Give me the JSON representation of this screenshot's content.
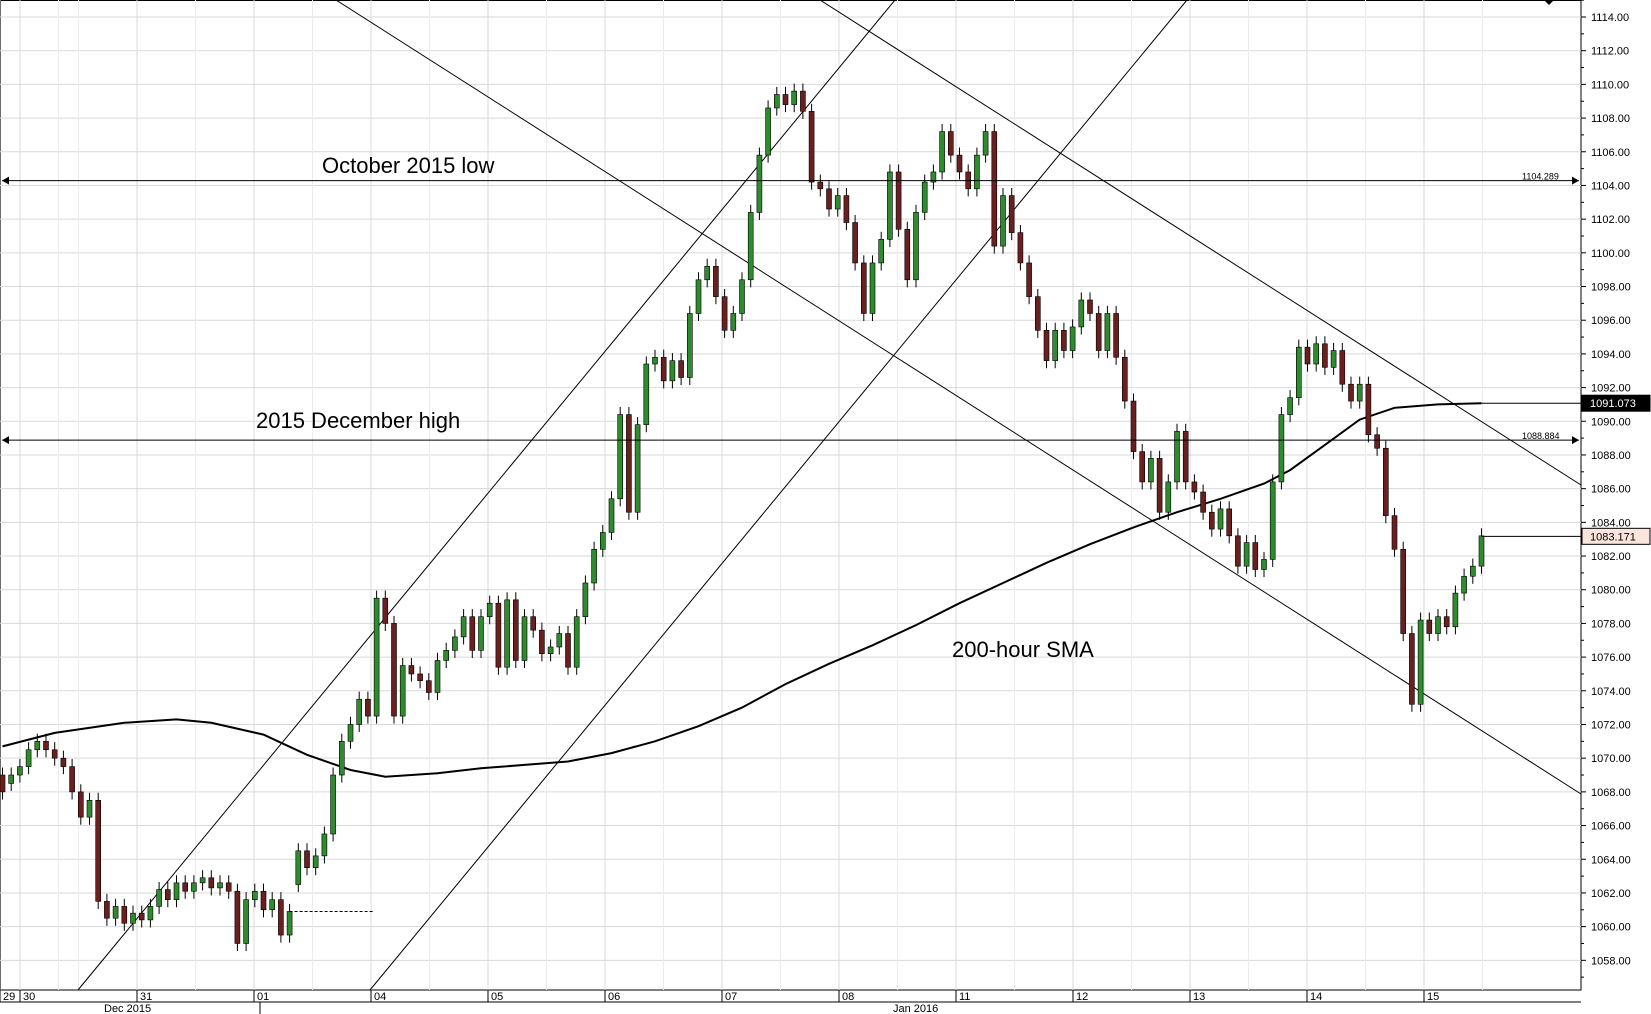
{
  "chart_data": {
    "type": "candlestick",
    "title": "",
    "xlabel": "",
    "ylabel": "",
    "ylim": [
      1056,
      1115
    ],
    "y_ticks": [
      "1114.00",
      "1112.00",
      "1110.00",
      "1108.00",
      "1106.00",
      "1104.00",
      "1102.00",
      "1100.00",
      "1098.00",
      "1096.00",
      "1094.00",
      "1092.00",
      "1090.00",
      "1088.00",
      "1086.00",
      "1084.00",
      "1082.00",
      "1080.00",
      "1078.00",
      "1076.00",
      "1074.00",
      "1072.00",
      "1070.00",
      "1068.00",
      "1066.00",
      "1064.00",
      "1062.00",
      "1060.00",
      "1058.00"
    ],
    "x_ticks": [
      "29",
      "30",
      "31",
      "01",
      "04",
      "05",
      "06",
      "07",
      "08",
      "11",
      "12",
      "13",
      "14",
      "15"
    ],
    "month_labels": [
      "Dec 2015",
      "Jan 2016"
    ],
    "grid": true,
    "annotations": [
      {
        "text": "October 2015 low",
        "level": 1104.289,
        "level_label": "1104.289"
      },
      {
        "text": "2015 December high",
        "level": 1088.884,
        "level_label": "1088.884"
      },
      {
        "text": "200-hour SMA"
      }
    ],
    "price_tags": [
      {
        "text": "1091.073",
        "value": 1091.073,
        "style": "dark"
      },
      {
        "text": "1083.171",
        "value": 1083.171,
        "style": "light"
      }
    ],
    "series": [
      {
        "kind": "candles",
        "points": [
          [
            0,
            1069,
            1068
          ],
          [
            1,
            1068.5,
            1069
          ],
          [
            2,
            1069,
            1069.5
          ],
          [
            3,
            1069.5,
            1070.5
          ],
          [
            4,
            1070.5,
            1071
          ],
          [
            5,
            1071,
            1070.5
          ],
          [
            6,
            1070.5,
            1070
          ],
          [
            7,
            1070,
            1069.5
          ],
          [
            8,
            1069.5,
            1068
          ],
          [
            9,
            1068,
            1066.5
          ],
          [
            10,
            1066.5,
            1067.5
          ],
          [
            11,
            1067.5,
            1061.5
          ],
          [
            12,
            1061.5,
            1060.5
          ],
          [
            13,
            1060.5,
            1061.2
          ],
          [
            14,
            1061.2,
            1060.2
          ],
          [
            15,
            1060.2,
            1060.8
          ],
          [
            16,
            1060.8,
            1060.4
          ],
          [
            17,
            1060.4,
            1061.2
          ],
          [
            18,
            1061.2,
            1062.2
          ],
          [
            19,
            1062.2,
            1061.6
          ],
          [
            20,
            1061.6,
            1062.6
          ],
          [
            21,
            1062.6,
            1062.1
          ],
          [
            22,
            1062.1,
            1062.6
          ],
          [
            23,
            1062.6,
            1062.9
          ],
          [
            24,
            1062.9,
            1062.3
          ],
          [
            25,
            1062.3,
            1062.6
          ],
          [
            26,
            1062.6,
            1062.1
          ],
          [
            27,
            1062.1,
            1059
          ],
          [
            28,
            1059,
            1061.6
          ],
          [
            29,
            1061.6,
            1062.1
          ],
          [
            30,
            1062.1,
            1061
          ],
          [
            31,
            1061,
            1061.6
          ],
          [
            32,
            1061.6,
            1059.5
          ],
          [
            33,
            1059.5,
            1060.9
          ],
          [
            34,
            1062.5,
            1064.5
          ],
          [
            35,
            1064.5,
            1063.5
          ],
          [
            36,
            1063.5,
            1064.2
          ],
          [
            37,
            1064.2,
            1065.5
          ],
          [
            38,
            1065.5,
            1069
          ],
          [
            39,
            1069,
            1071
          ],
          [
            40,
            1071,
            1072
          ],
          [
            41,
            1072,
            1073.5
          ],
          [
            42,
            1073.5,
            1072.5
          ],
          [
            43,
            1072.5,
            1079.5
          ],
          [
            44,
            1079.5,
            1078
          ],
          [
            45,
            1078,
            1072.5
          ],
          [
            46,
            1072.5,
            1075.5
          ],
          [
            47,
            1075.5,
            1075
          ],
          [
            48,
            1075,
            1074.6
          ],
          [
            49,
            1074.6,
            1073.9
          ],
          [
            50,
            1073.9,
            1075.8
          ],
          [
            51,
            1075.8,
            1076.4
          ],
          [
            52,
            1076.4,
            1077.2
          ],
          [
            53,
            1077.2,
            1078.4
          ],
          [
            54,
            1078.4,
            1076.4
          ],
          [
            55,
            1076.4,
            1078.4
          ],
          [
            56,
            1078.4,
            1079.2
          ],
          [
            57,
            1079.2,
            1075.4
          ],
          [
            58,
            1075.4,
            1079.4
          ],
          [
            59,
            1079.4,
            1075.8
          ],
          [
            60,
            1075.8,
            1078.4
          ],
          [
            61,
            1078.4,
            1077.6
          ],
          [
            62,
            1077.6,
            1076.2
          ],
          [
            63,
            1076.2,
            1076.6
          ],
          [
            64,
            1076.6,
            1077.4
          ],
          [
            65,
            1077.4,
            1075.4
          ],
          [
            66,
            1075.4,
            1078.4
          ],
          [
            67,
            1078.4,
            1080.4
          ],
          [
            68,
            1080.4,
            1082.4
          ],
          [
            69,
            1082.4,
            1083.4
          ],
          [
            70,
            1083.4,
            1085.4
          ],
          [
            71,
            1085.4,
            1090.4
          ],
          [
            72,
            1090.4,
            1084.6
          ],
          [
            73,
            1084.6,
            1089.8
          ],
          [
            74,
            1089.8,
            1093.4
          ],
          [
            75,
            1093.4,
            1093.8
          ],
          [
            76,
            1093.8,
            1092.4
          ],
          [
            77,
            1092.4,
            1093.6
          ],
          [
            78,
            1093.6,
            1092.6
          ],
          [
            79,
            1092.6,
            1096.4
          ],
          [
            80,
            1096.4,
            1098.4
          ],
          [
            81,
            1098.4,
            1099.2
          ],
          [
            82,
            1099.2,
            1097.4
          ],
          [
            83,
            1097.4,
            1095.4
          ],
          [
            84,
            1095.4,
            1096.4
          ],
          [
            85,
            1096.4,
            1098.4
          ],
          [
            86,
            1098.4,
            1102.4
          ],
          [
            87,
            1102.4,
            1105.8
          ],
          [
            88,
            1105.8,
            1108.6
          ],
          [
            89,
            1108.6,
            1109.4
          ],
          [
            90,
            1109.4,
            1108.8
          ],
          [
            91,
            1108.8,
            1109.6
          ],
          [
            92,
            1109.6,
            1108.4
          ],
          [
            93,
            1108.4,
            1104.2
          ],
          [
            94,
            1104.2,
            1103.8
          ],
          [
            95,
            1103.8,
            1102.6
          ],
          [
            96,
            1102.6,
            1103.4
          ],
          [
            97,
            1103.4,
            1101.8
          ],
          [
            98,
            1101.8,
            1099.4
          ],
          [
            99,
            1099.4,
            1096.4
          ],
          [
            100,
            1096.4,
            1099.4
          ],
          [
            101,
            1099.4,
            1100.8
          ],
          [
            102,
            1100.8,
            1104.8
          ],
          [
            103,
            1104.8,
            1101.4
          ],
          [
            104,
            1101.4,
            1098.4
          ],
          [
            105,
            1098.4,
            1102.4
          ],
          [
            106,
            1102.4,
            1104.2
          ],
          [
            107,
            1104.2,
            1104.8
          ],
          [
            108,
            1104.8,
            1107.2
          ],
          [
            109,
            1107.2,
            1105.8
          ],
          [
            110,
            1105.8,
            1104.8
          ],
          [
            111,
            1104.8,
            1103.8
          ],
          [
            112,
            1103.8,
            1105.8
          ],
          [
            113,
            1105.8,
            1107.2
          ],
          [
            114,
            1107.2,
            1100.4
          ],
          [
            115,
            1100.4,
            1103.4
          ],
          [
            116,
            1103.4,
            1101.2
          ],
          [
            117,
            1101.2,
            1099.4
          ],
          [
            118,
            1099.4,
            1097.4
          ],
          [
            119,
            1097.4,
            1095.4
          ],
          [
            120,
            1095.4,
            1093.6
          ],
          [
            121,
            1093.6,
            1095.4
          ],
          [
            122,
            1095.4,
            1094.2
          ],
          [
            123,
            1094.2,
            1095.6
          ],
          [
            124,
            1095.6,
            1097.2
          ],
          [
            125,
            1097.2,
            1096.4
          ],
          [
            126,
            1096.4,
            1094.2
          ],
          [
            127,
            1094.2,
            1096.4
          ],
          [
            128,
            1096.4,
            1093.8
          ],
          [
            129,
            1093.8,
            1091.2
          ],
          [
            130,
            1091.2,
            1088.2
          ],
          [
            131,
            1088.2,
            1086.4
          ],
          [
            132,
            1086.4,
            1087.8
          ],
          [
            133,
            1087.8,
            1084.6
          ],
          [
            134,
            1084.6,
            1086.4
          ],
          [
            135,
            1086.4,
            1089.4
          ],
          [
            136,
            1089.4,
            1086.4
          ],
          [
            137,
            1086.4,
            1085.8
          ],
          [
            138,
            1085.8,
            1084.6
          ],
          [
            139,
            1084.6,
            1083.6
          ],
          [
            140,
            1083.6,
            1084.8
          ],
          [
            141,
            1084.8,
            1083.2
          ],
          [
            142,
            1083.2,
            1081.4
          ],
          [
            143,
            1081.4,
            1082.8
          ],
          [
            144,
            1082.8,
            1081.2
          ],
          [
            145,
            1081.2,
            1081.8
          ],
          [
            146,
            1081.8,
            1086.4
          ],
          [
            147,
            1086.4,
            1090.4
          ],
          [
            148,
            1090.4,
            1091.4
          ],
          [
            149,
            1091.4,
            1094.4
          ],
          [
            150,
            1094.4,
            1093.4
          ],
          [
            151,
            1093.4,
            1094.6
          ],
          [
            152,
            1094.6,
            1093.2
          ],
          [
            153,
            1093.2,
            1094.2
          ],
          [
            154,
            1094.2,
            1092.2
          ],
          [
            155,
            1092.2,
            1091.2
          ],
          [
            156,
            1091.2,
            1092.2
          ],
          [
            157,
            1092.2,
            1089.2
          ],
          [
            158,
            1089.2,
            1088.4
          ],
          [
            159,
            1088.4,
            1084.4
          ],
          [
            160,
            1084.4,
            1082.4
          ],
          [
            161,
            1082.4,
            1077.4
          ],
          [
            162,
            1077.4,
            1073.2
          ],
          [
            163,
            1073.2,
            1078.2
          ],
          [
            164,
            1078.2,
            1077.4
          ],
          [
            165,
            1077.4,
            1078.4
          ],
          [
            166,
            1078.4,
            1077.8
          ],
          [
            167,
            1077.8,
            1079.8
          ],
          [
            168,
            1079.8,
            1080.8
          ],
          [
            169,
            1080.8,
            1081.4
          ],
          [
            170,
            1081.4,
            1083.2
          ]
        ]
      },
      {
        "kind": "sma",
        "points": [
          [
            0,
            1070.7
          ],
          [
            6,
            1071.5
          ],
          [
            14,
            1072.1
          ],
          [
            20,
            1072.3
          ],
          [
            24,
            1072.1
          ],
          [
            30,
            1071.4
          ],
          [
            35,
            1070.2
          ],
          [
            40,
            1069.3
          ],
          [
            44,
            1068.9
          ],
          [
            50,
            1069.1
          ],
          [
            55,
            1069.4
          ],
          [
            60,
            1069.6
          ],
          [
            65,
            1069.8
          ],
          [
            70,
            1070.3
          ],
          [
            75,
            1071
          ],
          [
            80,
            1071.9
          ],
          [
            85,
            1073
          ],
          [
            90,
            1074.4
          ],
          [
            95,
            1075.6
          ],
          [
            100,
            1076.7
          ],
          [
            105,
            1077.9
          ],
          [
            110,
            1079.2
          ],
          [
            115,
            1080.4
          ],
          [
            120,
            1081.6
          ],
          [
            125,
            1082.7
          ],
          [
            130,
            1083.7
          ],
          [
            135,
            1084.6
          ],
          [
            140,
            1085.4
          ],
          [
            145,
            1086.3
          ],
          [
            148,
            1087.1
          ],
          [
            152,
            1088.6
          ],
          [
            156,
            1090.1
          ],
          [
            160,
            1090.8
          ],
          [
            165,
            1091
          ],
          [
            170,
            1091.07
          ]
        ]
      }
    ]
  }
}
